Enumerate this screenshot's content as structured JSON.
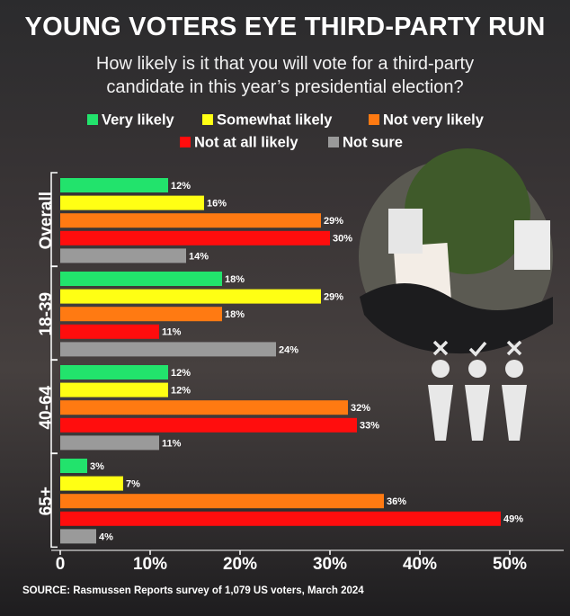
{
  "chart_data": {
    "type": "hbar",
    "title": "YOUNG VOTERS EYE THIRD-PARTY RUN",
    "subtitle": "How likely is it that you will vote for a third-party candidate in this year’s presidential election?",
    "source": "SOURCE: Rasmussen Reports survey of 1,079 US voters, March 2024",
    "categories": [
      "Overall",
      "18-39",
      "40-64",
      "65+"
    ],
    "series": [
      {
        "name": "Very likely",
        "color": "#22e36c",
        "values": [
          12,
          18,
          12,
          3
        ],
        "value_labels": [
          "12%",
          "18%",
          "12%",
          "3%"
        ]
      },
      {
        "name": "Somewhat likely",
        "color": "#ffff14",
        "values": [
          16,
          29,
          12,
          7
        ],
        "value_labels": [
          "16%",
          "29%",
          "12%",
          "7%"
        ]
      },
      {
        "name": "Not very likely",
        "color": "#ff7a12",
        "values": [
          29,
          18,
          32,
          36
        ],
        "value_labels": [
          "29%",
          "18%",
          "32%",
          "36%"
        ]
      },
      {
        "name": "Not at all likely",
        "color": "#ff0d0d",
        "values": [
          30,
          11,
          33,
          49
        ],
        "value_labels": [
          "30%",
          "11%",
          "33%",
          "49%"
        ]
      },
      {
        "name": "Not sure",
        "color": "#9a9a9a",
        "values": [
          14,
          24,
          11,
          4
        ],
        "value_labels": [
          "14%",
          "24%",
          "11%",
          "4%"
        ]
      }
    ],
    "xlim": [
      0,
      56
    ],
    "xticks": [
      0,
      {
        "value": 10,
        "label": "10%"
      },
      {
        "value": 20,
        "label": "20%"
      },
      {
        "value": 30,
        "label": "30%"
      },
      {
        "value": 40,
        "label": "40%"
      },
      {
        "value": 50,
        "label": "50%"
      }
    ]
  }
}
